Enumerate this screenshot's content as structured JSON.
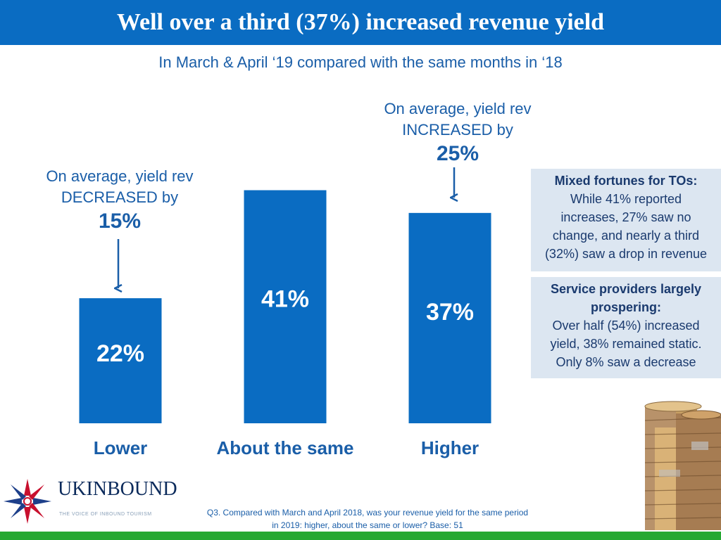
{
  "header": {
    "title": "Well over a third (37%) increased revenue yield"
  },
  "subtitle": "In March & April ‘19 compared with the same months in ‘18",
  "annotations": {
    "lower": {
      "line1": "On average, yield rev",
      "line2": "DECREASED by",
      "value": "15%"
    },
    "higher": {
      "line1": "On average, yield rev",
      "line2": "INCREASED by",
      "value": "25%"
    }
  },
  "chart_data": {
    "type": "bar",
    "title": "",
    "categories": [
      "Lower",
      "About the same",
      "Higher"
    ],
    "values": [
      22,
      41,
      37
    ],
    "value_labels": [
      "22%",
      "41%",
      "37%"
    ],
    "ylim": [
      0,
      45
    ],
    "xlabel": "",
    "ylabel": "",
    "grid": false,
    "bar_color": "#0a6cc2"
  },
  "sidebox1": {
    "heading": "Mixed fortunes for TOs:",
    "lines": [
      "While 41% reported",
      "increases, 27% saw no",
      "change, and nearly a third",
      "(32%) saw a drop in revenue"
    ]
  },
  "sidebox2": {
    "heading_line1": "Service providers largely",
    "heading_line2": "prospering:",
    "lines": [
      "Over half (54%) increased",
      "yield, 38% remained static.",
      "Only 8% saw a decrease"
    ]
  },
  "logo": {
    "name": "UKINBOUND",
    "tagline": "THE VOICE OF INBOUND TOURISM"
  },
  "footnote": {
    "line1": "Q3. Compared with March and April 2018, was your revenue yield for the same period",
    "line2": "in 2019: higher, about the same or lower?  Base: 51"
  },
  "colors": {
    "brand_blue": "#0a6cc2",
    "text_blue": "#1a5ea8",
    "box_bg": "#dce6f1",
    "green": "#26a832"
  }
}
